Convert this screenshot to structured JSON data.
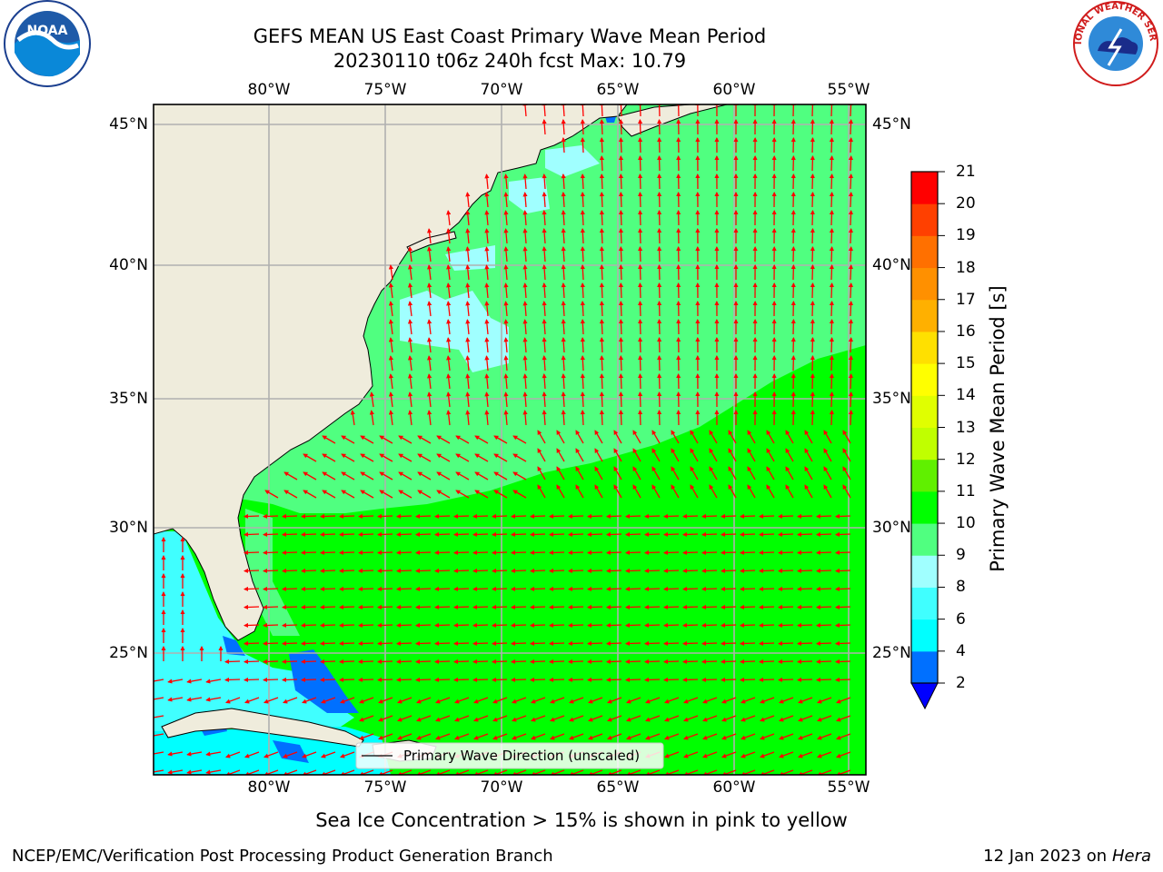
{
  "title": {
    "line1": "GEFS MEAN US East Coast Primary Wave Mean Period",
    "line2": "20230110 t06z 240h fcst   Max: 10.79"
  },
  "logos": {
    "left": {
      "name": "NOAA",
      "ring_text": "NATIONAL OCEANIC AND ATMOSPHERIC ADMINISTRATION · U.S. DEPARTMENT OF COMMERCE"
    },
    "right": {
      "name": "NATIONAL WEATHER SERVICE"
    }
  },
  "map": {
    "lon_labels": [
      "80°W",
      "75°W",
      "70°W",
      "65°W",
      "60°W",
      "55°W"
    ],
    "lat_labels": [
      "45°N",
      "40°N",
      "35°N",
      "30°N",
      "25°N"
    ],
    "legend_label": "Primary Wave Direction (unscaled)",
    "colors": {
      "land": "#efecdc",
      "grid": "#b0b0b0",
      "arrow": "#ff0000",
      "coast": "#000000"
    }
  },
  "colorbar": {
    "label": "Primary Wave Mean Period [s]",
    "ticks": [
      "2",
      "4",
      "6",
      "8",
      "9",
      "10",
      "11",
      "12",
      "13",
      "14",
      "15",
      "16",
      "17",
      "18",
      "19",
      "20",
      "21"
    ],
    "colors": [
      "#0070ff",
      "#00ffff",
      "#40ffff",
      "#a0ffff",
      "#50ff80",
      "#00ff00",
      "#60f000",
      "#c0ff00",
      "#e0ff00",
      "#ffff00",
      "#ffe000",
      "#ffb000",
      "#ff9000",
      "#ff7000",
      "#ff4000",
      "#ff0000"
    ],
    "under_color": "#0000ff"
  },
  "footer": {
    "note": "Sea Ice Concentration > 15% is shown in pink to yellow",
    "credit": "NCEP/EMC/Verification Post Processing Product Generation Branch",
    "date": "12 Jan 2023 on",
    "machine": "Hera"
  }
}
